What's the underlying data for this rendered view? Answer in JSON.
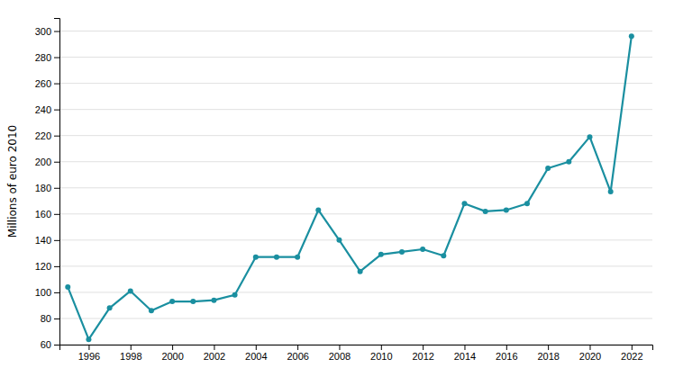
{
  "chart_data": {
    "type": "line",
    "ylabel": "Millions of euro 2010",
    "x": [
      1995,
      1996,
      1997,
      1998,
      1999,
      2000,
      2001,
      2002,
      2003,
      2004,
      2005,
      2006,
      2007,
      2008,
      2009,
      2010,
      2011,
      2012,
      2013,
      2014,
      2015,
      2016,
      2017,
      2018,
      2019,
      2020,
      2021,
      2022
    ],
    "values": [
      104,
      64,
      88,
      101,
      86,
      93,
      93,
      94,
      98,
      127,
      127,
      127,
      163,
      140,
      116,
      129,
      131,
      133,
      128,
      168,
      162,
      163,
      168,
      195,
      200,
      219,
      177,
      296
    ],
    "color": "#1a8fa0",
    "marker": "circle",
    "xlim": [
      1994.6,
      2023
    ],
    "xticks": [
      1996,
      1998,
      2000,
      2002,
      2004,
      2006,
      2008,
      2010,
      2012,
      2014,
      2016,
      2018,
      2020,
      2022
    ],
    "ylim": [
      60,
      310
    ],
    "yticks": [
      60,
      80,
      100,
      120,
      140,
      160,
      180,
      200,
      220,
      240,
      260,
      280,
      300
    ],
    "grid": true
  }
}
